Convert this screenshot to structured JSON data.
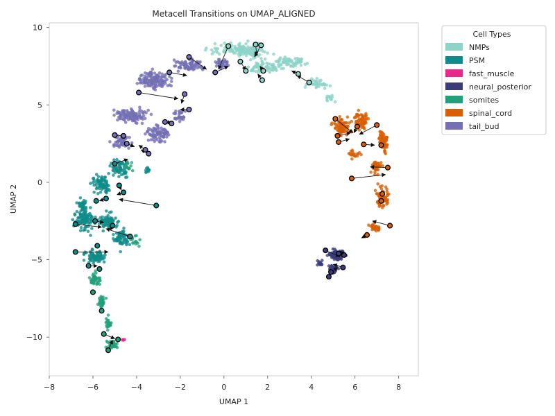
{
  "chart_data": {
    "type": "scatter",
    "title": "Metacell Transitions on UMAP_ALIGNED",
    "xlabel": "UMAP 1",
    "ylabel": "UMAP 2",
    "xlim": [
      -8,
      8.9
    ],
    "ylim": [
      -12.5,
      10.3
    ],
    "xticks": [
      -8,
      -6,
      -4,
      -2,
      0,
      2,
      4,
      6,
      8
    ],
    "xtick_labels": [
      "−8",
      "−6",
      "−4",
      "−2",
      "0",
      "2",
      "4",
      "6",
      "8"
    ],
    "yticks": [
      -10,
      -5,
      0,
      5,
      10
    ],
    "ytick_labels": [
      "−10",
      "−5",
      "0",
      "5",
      "10"
    ],
    "grid": false,
    "legend": {
      "title": "Cell Types",
      "placement": "outside-right-top",
      "entries": [
        "NMPs",
        "PSM",
        "fast_muscle",
        "neural_posterior",
        "somites",
        "spinal_cord",
        "tail_bud"
      ]
    },
    "series": [
      {
        "name": "NMPs",
        "color": "#8dd3c7",
        "clusters": [
          [
            0.2,
            8.6,
            1.6,
            0.5,
            60
          ],
          [
            1.2,
            8.5,
            1.2,
            0.7,
            90
          ],
          [
            1.8,
            7.4,
            1.4,
            0.5,
            70
          ],
          [
            3.0,
            7.8,
            1.2,
            0.5,
            60
          ],
          [
            4.2,
            6.4,
            0.8,
            0.4,
            40
          ],
          [
            4.9,
            5.4,
            0.3,
            0.3,
            12
          ]
        ]
      },
      {
        "name": "PSM",
        "color": "#0f8c8a",
        "clusters": [
          [
            -4.8,
            1.0,
            0.6,
            0.9,
            60
          ],
          [
            -5.6,
            -0.1,
            0.7,
            0.8,
            80
          ],
          [
            -6.4,
            -2.3,
            0.6,
            1.1,
            110
          ],
          [
            -5.3,
            -2.6,
            0.7,
            0.8,
            80
          ],
          [
            -4.7,
            -3.6,
            0.5,
            0.9,
            60
          ],
          [
            -5.9,
            -4.8,
            0.7,
            0.7,
            70
          ],
          [
            -6.5,
            -1.4,
            0.4,
            0.4,
            25
          ],
          [
            -3.5,
            0.8,
            0.3,
            0.3,
            12
          ]
        ]
      },
      {
        "name": "fast_muscle",
        "color": "#e7298a",
        "clusters": [
          [
            -4.6,
            -10.15,
            0.08,
            0.1,
            5
          ]
        ]
      },
      {
        "name": "neural_posterior",
        "color": "#3b3b7a",
        "clusters": [
          [
            5.2,
            -4.7,
            0.55,
            0.45,
            110
          ],
          [
            5.0,
            -5.6,
            0.35,
            0.5,
            40
          ],
          [
            4.4,
            -5.2,
            0.3,
            0.3,
            14
          ]
        ]
      },
      {
        "name": "somites",
        "color": "#21a07a",
        "clusters": [
          [
            -5.9,
            -6.3,
            0.3,
            0.7,
            45
          ],
          [
            -5.6,
            -7.8,
            0.25,
            0.6,
            35
          ],
          [
            -5.3,
            -9.1,
            0.2,
            0.5,
            25
          ],
          [
            -5.1,
            -10.5,
            0.35,
            0.4,
            40
          ],
          [
            -4.3,
            1.0,
            0.3,
            0.4,
            12
          ],
          [
            -4.1,
            -3.8,
            0.3,
            0.5,
            14
          ]
        ]
      },
      {
        "name": "spinal_cord",
        "color": "#d95f02",
        "clusters": [
          [
            5.4,
            3.6,
            0.6,
            0.9,
            80
          ],
          [
            6.3,
            4.0,
            0.5,
            0.7,
            60
          ],
          [
            7.3,
            2.7,
            0.4,
            1.0,
            70
          ],
          [
            7.0,
            1.0,
            0.4,
            0.6,
            40
          ],
          [
            7.3,
            -1.0,
            0.4,
            1.1,
            70
          ],
          [
            6.9,
            -3.0,
            0.35,
            0.5,
            30
          ],
          [
            6.0,
            1.8,
            0.4,
            0.4,
            20
          ]
        ]
      },
      {
        "name": "tail_bud",
        "color": "#7570b3",
        "clusters": [
          [
            -3.2,
            6.6,
            1.1,
            0.8,
            140
          ],
          [
            -1.6,
            7.6,
            0.9,
            0.6,
            80
          ],
          [
            -0.1,
            7.7,
            0.5,
            0.5,
            40
          ],
          [
            -4.2,
            4.3,
            1.0,
            0.7,
            110
          ],
          [
            -3.0,
            3.1,
            0.8,
            0.7,
            80
          ],
          [
            -4.7,
            2.6,
            0.6,
            0.5,
            60
          ],
          [
            -2.0,
            4.3,
            0.4,
            0.6,
            30
          ]
        ]
      }
    ],
    "metacells": [
      {
        "cell_type": "NMPs",
        "x": 0.2,
        "y": 8.8
      },
      {
        "cell_type": "NMPs",
        "x": 0.75,
        "y": 7.8
      },
      {
        "cell_type": "NMPs",
        "x": 1.0,
        "y": 7.2
      },
      {
        "cell_type": "NMPs",
        "x": 1.45,
        "y": 8.9
      },
      {
        "cell_type": "NMPs",
        "x": 1.7,
        "y": 8.85
      },
      {
        "cell_type": "NMPs",
        "x": 1.8,
        "y": 7.2
      },
      {
        "cell_type": "NMPs",
        "x": 1.75,
        "y": 6.6
      },
      {
        "cell_type": "NMPs",
        "x": 3.4,
        "y": 7.0
      },
      {
        "cell_type": "NMPs",
        "x": 3.9,
        "y": 6.45
      },
      {
        "cell_type": "tail_bud",
        "x": -1.6,
        "y": 8.1
      },
      {
        "cell_type": "tail_bud",
        "x": -0.4,
        "y": 7.1
      },
      {
        "cell_type": "tail_bud",
        "x": -2.5,
        "y": 7.1
      },
      {
        "cell_type": "tail_bud",
        "x": -3.9,
        "y": 5.8
      },
      {
        "cell_type": "tail_bud",
        "x": -1.8,
        "y": 5.7
      },
      {
        "cell_type": "tail_bud",
        "x": -1.6,
        "y": 4.7
      },
      {
        "cell_type": "tail_bud",
        "x": -2.7,
        "y": 3.9
      },
      {
        "cell_type": "tail_bud",
        "x": -2.4,
        "y": 3.8
      },
      {
        "cell_type": "tail_bud",
        "x": -5.0,
        "y": 3.05
      },
      {
        "cell_type": "tail_bud",
        "x": -4.6,
        "y": 3.0
      },
      {
        "cell_type": "tail_bud",
        "x": -4.45,
        "y": 2.5
      },
      {
        "cell_type": "tail_bud",
        "x": -3.6,
        "y": 2.1
      },
      {
        "cell_type": "tail_bud",
        "x": -3.45,
        "y": 1.85
      },
      {
        "cell_type": "PSM",
        "x": -5.0,
        "y": 1.2
      },
      {
        "cell_type": "PSM",
        "x": -4.8,
        "y": -0.2
      },
      {
        "cell_type": "PSM",
        "x": -4.6,
        "y": -0.65
      },
      {
        "cell_type": "PSM",
        "x": -5.4,
        "y": -1.05
      },
      {
        "cell_type": "PSM",
        "x": -5.85,
        "y": -1.2
      },
      {
        "cell_type": "PSM",
        "x": -3.1,
        "y": -1.5
      },
      {
        "cell_type": "PSM",
        "x": -6.8,
        "y": -2.7
      },
      {
        "cell_type": "PSM",
        "x": -5.9,
        "y": -2.5
      },
      {
        "cell_type": "PSM",
        "x": -5.1,
        "y": -2.8
      },
      {
        "cell_type": "PSM",
        "x": -4.3,
        "y": -3.5
      },
      {
        "cell_type": "PSM",
        "x": -5.8,
        "y": -4.1
      },
      {
        "cell_type": "PSM",
        "x": -6.8,
        "y": -4.5
      },
      {
        "cell_type": "PSM",
        "x": -6.2,
        "y": -5.4
      },
      {
        "cell_type": "PSM",
        "x": -5.7,
        "y": -5.6
      },
      {
        "cell_type": "somites",
        "x": -6.0,
        "y": -7.1
      },
      {
        "cell_type": "somites",
        "x": -5.6,
        "y": -8.3
      },
      {
        "cell_type": "somites",
        "x": -5.5,
        "y": -9.8
      },
      {
        "cell_type": "somites",
        "x": -4.85,
        "y": -10.15
      },
      {
        "cell_type": "somites",
        "x": -5.3,
        "y": -10.85
      },
      {
        "cell_type": "spinal_cord",
        "x": 5.1,
        "y": 4.1
      },
      {
        "cell_type": "spinal_cord",
        "x": 6.1,
        "y": 3.6
      },
      {
        "cell_type": "spinal_cord",
        "x": 7.0,
        "y": 3.7
      },
      {
        "cell_type": "spinal_cord",
        "x": 5.2,
        "y": 3.0
      },
      {
        "cell_type": "spinal_cord",
        "x": 5.25,
        "y": 2.6
      },
      {
        "cell_type": "spinal_cord",
        "x": 6.4,
        "y": 2.45
      },
      {
        "cell_type": "spinal_cord",
        "x": 7.2,
        "y": 2.4
      },
      {
        "cell_type": "spinal_cord",
        "x": 7.5,
        "y": 0.95
      },
      {
        "cell_type": "spinal_cord",
        "x": 5.85,
        "y": 0.25
      },
      {
        "cell_type": "spinal_cord",
        "x": 7.25,
        "y": -0.75
      },
      {
        "cell_type": "spinal_cord",
        "x": 7.2,
        "y": -1.2
      },
      {
        "cell_type": "spinal_cord",
        "x": 7.6,
        "y": -2.8
      },
      {
        "cell_type": "spinal_cord",
        "x": 6.55,
        "y": -3.4
      },
      {
        "cell_type": "neural_posterior",
        "x": 4.65,
        "y": -4.4
      },
      {
        "cell_type": "neural_posterior",
        "x": 5.25,
        "y": -4.6
      },
      {
        "cell_type": "neural_posterior",
        "x": 5.5,
        "y": -4.7
      },
      {
        "cell_type": "neural_posterior",
        "x": 5.45,
        "y": -5.5
      },
      {
        "cell_type": "neural_posterior",
        "x": 4.9,
        "y": -5.8
      },
      {
        "cell_type": "neural_posterior",
        "x": 4.8,
        "y": -6.1
      }
    ],
    "transitions": [
      [
        0.75,
        7.8,
        1.0,
        7.25
      ],
      [
        1.45,
        8.9,
        1.5,
        8.2
      ],
      [
        1.7,
        8.85,
        1.4,
        8.1
      ],
      [
        1.8,
        7.2,
        1.65,
        7.5
      ],
      [
        1.75,
        6.6,
        1.55,
        7.0
      ],
      [
        3.4,
        7.0,
        3.1,
        7.2
      ],
      [
        3.9,
        6.45,
        3.35,
        6.9
      ],
      [
        0.2,
        8.8,
        -0.25,
        7.3
      ],
      [
        -1.6,
        8.1,
        -0.8,
        7.3
      ],
      [
        -0.4,
        7.1,
        0.2,
        7.5
      ],
      [
        -2.5,
        7.1,
        -1.7,
        6.9
      ],
      [
        -3.9,
        5.8,
        -2.1,
        5.4
      ],
      [
        -1.8,
        5.7,
        -1.95,
        5.1
      ],
      [
        -1.6,
        4.7,
        -2.0,
        4.7
      ],
      [
        -2.7,
        3.9,
        -2.4,
        3.85
      ],
      [
        -5.0,
        3.05,
        -4.55,
        3.0
      ],
      [
        -4.45,
        2.5,
        -4.1,
        2.3
      ],
      [
        -3.6,
        2.1,
        -3.9,
        2.4
      ],
      [
        -3.45,
        1.85,
        -3.8,
        2.1
      ],
      [
        -5.0,
        1.2,
        -4.4,
        1.5
      ],
      [
        -4.8,
        -0.2,
        -4.7,
        -0.5
      ],
      [
        -4.6,
        -0.65,
        -4.9,
        -0.8
      ],
      [
        -5.4,
        -1.05,
        -5.7,
        -1.2
      ],
      [
        -3.1,
        -1.5,
        -4.8,
        -1.1
      ],
      [
        -6.8,
        -2.7,
        -5.6,
        -2.9
      ],
      [
        -5.9,
        -2.5,
        -5.5,
        -2.6
      ],
      [
        -4.3,
        -3.5,
        -5.4,
        -3.0
      ],
      [
        -5.1,
        -2.8,
        -5.2,
        -3.1
      ],
      [
        -6.8,
        -4.5,
        -5.3,
        -4.5
      ],
      [
        -6.2,
        -5.4,
        -5.8,
        -5.4
      ],
      [
        -5.5,
        -9.8,
        -5.0,
        -10.1
      ],
      [
        -5.3,
        -10.85,
        -5.1,
        -10.2
      ],
      [
        5.1,
        4.1,
        5.9,
        3.2
      ],
      [
        6.1,
        3.6,
        5.95,
        3.2
      ],
      [
        7.0,
        3.7,
        6.2,
        3.1
      ],
      [
        5.2,
        3.0,
        5.8,
        3.2
      ],
      [
        5.25,
        2.6,
        5.75,
        2.8
      ],
      [
        6.4,
        2.45,
        6.9,
        2.4
      ],
      [
        7.5,
        0.95,
        6.7,
        1.0
      ],
      [
        5.85,
        0.25,
        7.4,
        0.5
      ],
      [
        7.6,
        -2.8,
        6.8,
        -2.5
      ],
      [
        6.55,
        -3.4,
        6.3,
        -3.6
      ],
      [
        4.65,
        -4.4,
        5.3,
        -4.8
      ],
      [
        5.25,
        -4.6,
        5.5,
        -4.5
      ],
      [
        5.45,
        -5.5,
        5.0,
        -5.3
      ],
      [
        4.9,
        -5.8,
        5.2,
        -5.5
      ],
      [
        4.8,
        -6.1,
        4.9,
        -5.6
      ]
    ]
  }
}
